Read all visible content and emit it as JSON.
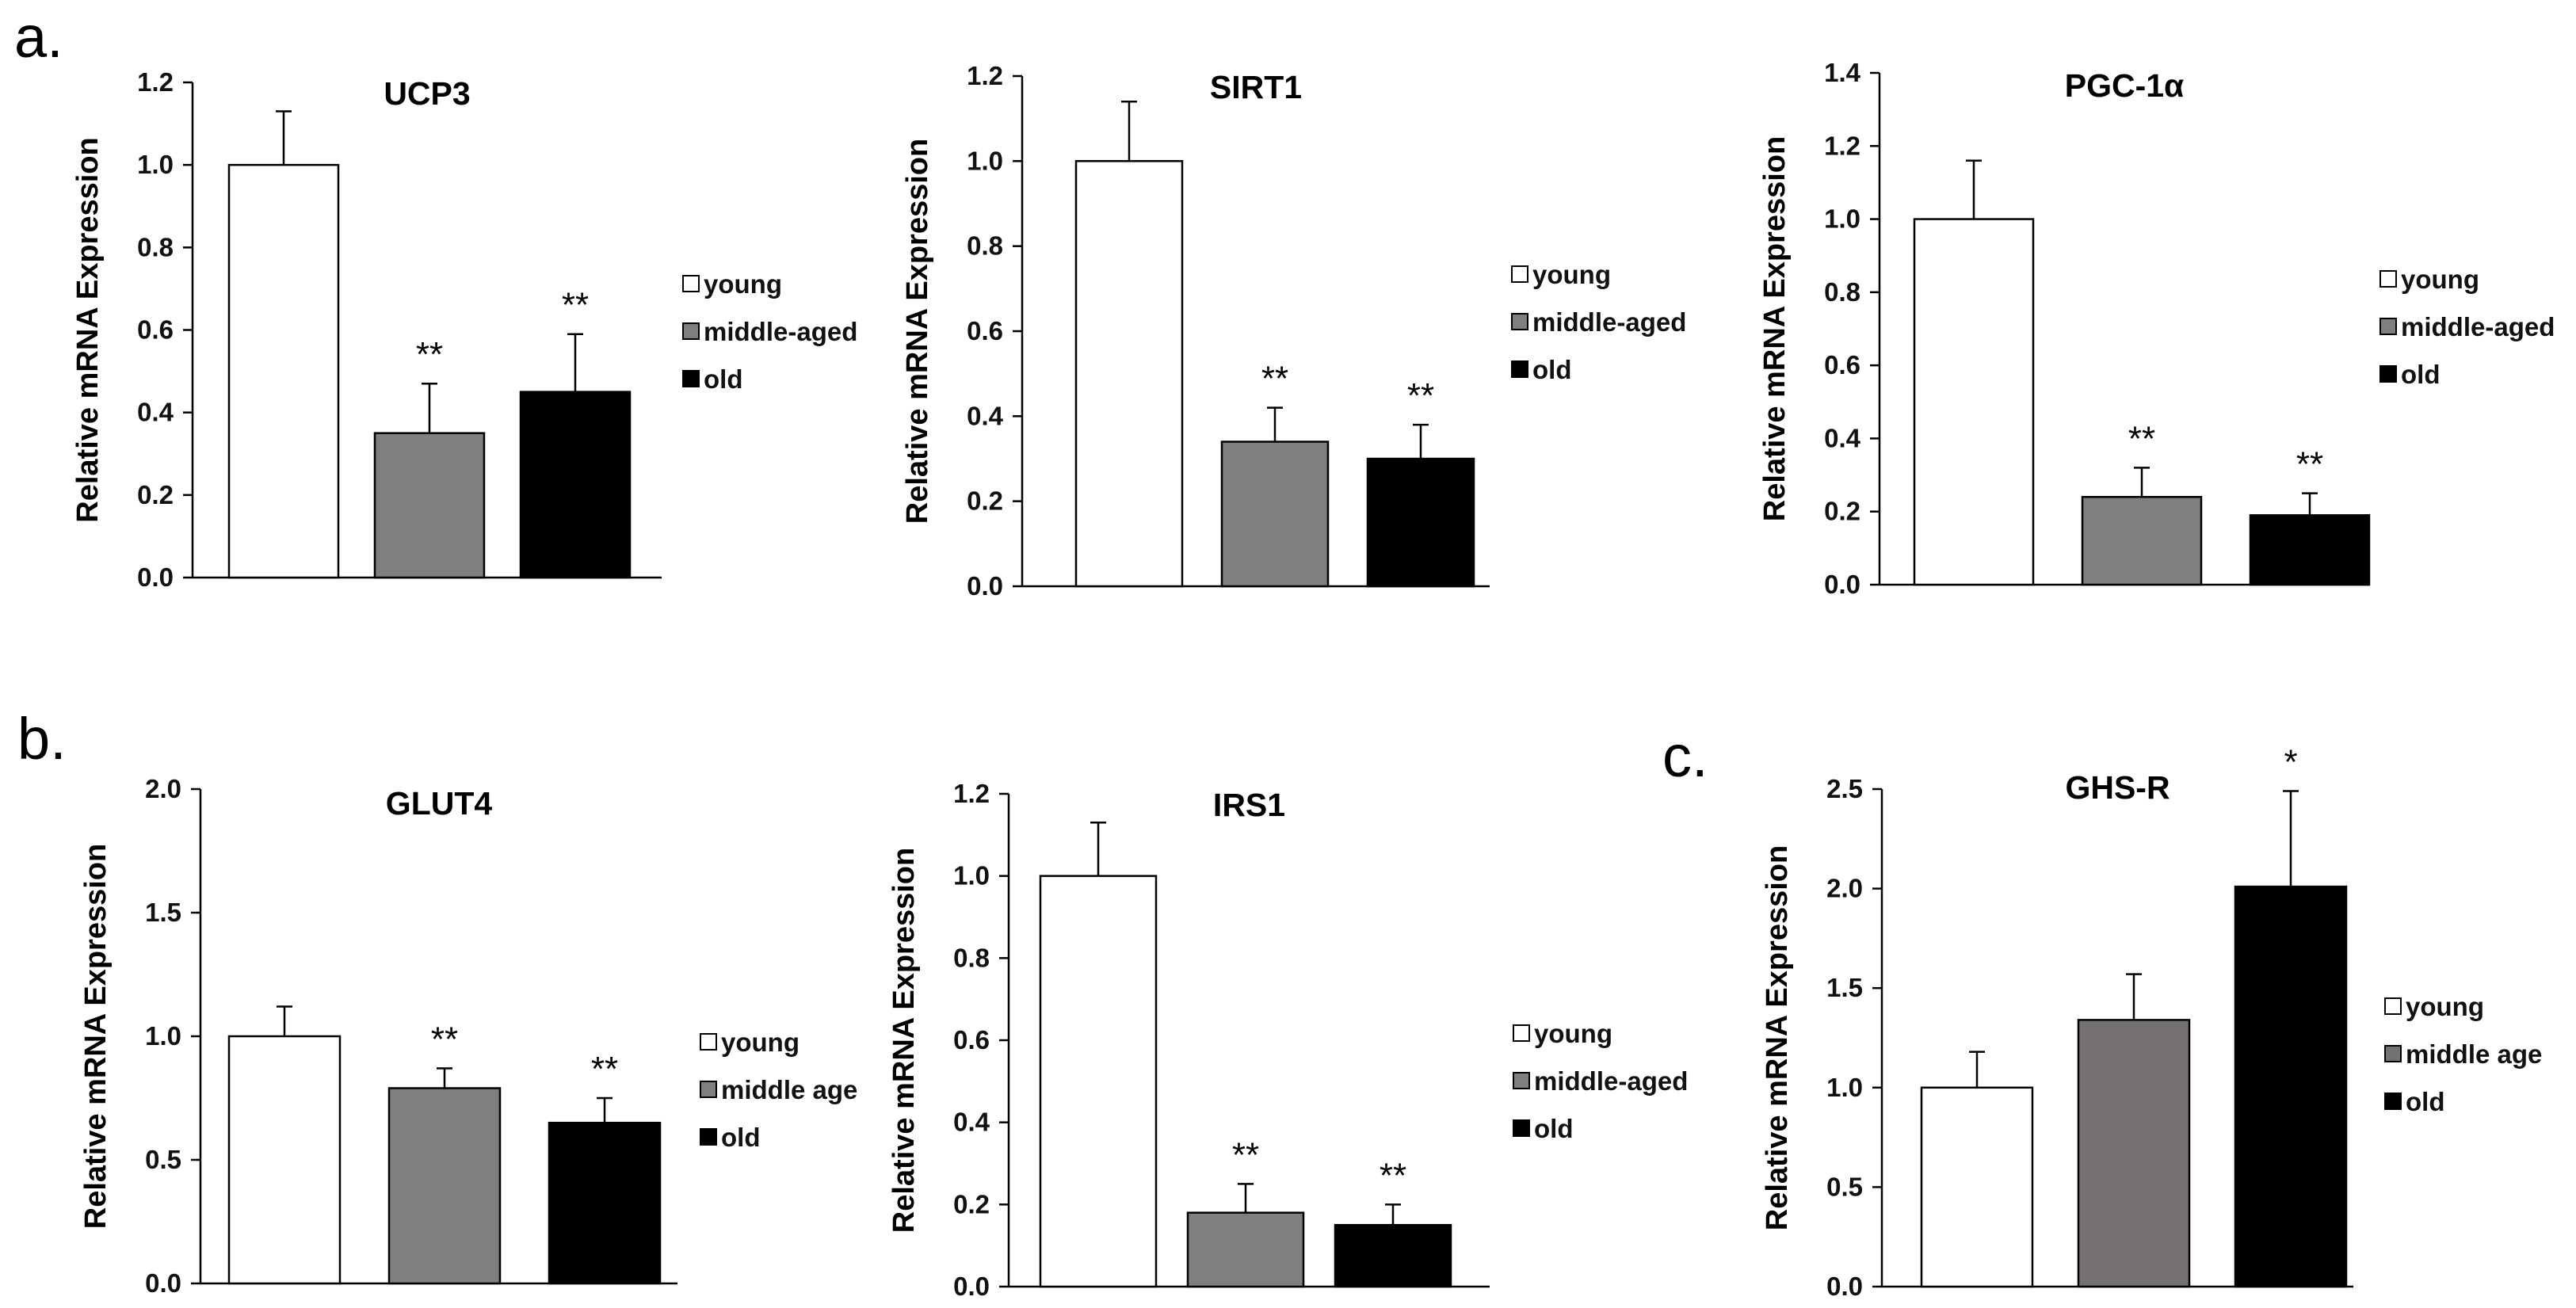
{
  "panel_labels": [
    "a.",
    "b.",
    "c."
  ],
  "colors": {
    "young": "#ffffff",
    "middle": "#7f7f7f",
    "middle_ghsr": "#767171",
    "old": "#000000",
    "axis": "#000000"
  },
  "chart_data": [
    {
      "type": "bar",
      "title": "UCP3",
      "ylabel": "Relative mRNA Expression",
      "xlabel": "",
      "categories": [
        "young",
        "middle-aged",
        "old"
      ],
      "values": [
        1.0,
        0.35,
        0.45
      ],
      "errors": [
        0.13,
        0.12,
        0.14
      ],
      "significance": [
        "",
        "**",
        "**"
      ],
      "ylim": [
        0,
        1.2
      ],
      "yticks": [
        "0.0",
        "0.2",
        "0.4",
        "0.6",
        "0.8",
        "1.0",
        "1.2"
      ],
      "legend": [
        "young",
        "middle-aged",
        "old"
      ]
    },
    {
      "type": "bar",
      "title": "SIRT1",
      "ylabel": "Relative mRNA Expression",
      "xlabel": "",
      "categories": [
        "young",
        "middle-aged",
        "old"
      ],
      "values": [
        1.0,
        0.34,
        0.3
      ],
      "errors": [
        0.14,
        0.08,
        0.08
      ],
      "significance": [
        "",
        "**",
        "**"
      ],
      "ylim": [
        0,
        1.2
      ],
      "yticks": [
        "0.0",
        "0.2",
        "0.4",
        "0.6",
        "0.8",
        "1.0",
        "1.2"
      ],
      "legend": [
        "young",
        "middle-aged",
        "old"
      ]
    },
    {
      "type": "bar",
      "title": "PGC-1α",
      "ylabel": "Relative mRNA Expression",
      "xlabel": "",
      "categories": [
        "young",
        "middle-aged",
        "old"
      ],
      "values": [
        1.0,
        0.24,
        0.19
      ],
      "errors": [
        0.16,
        0.08,
        0.06
      ],
      "significance": [
        "",
        "**",
        "**"
      ],
      "ylim": [
        0,
        1.4
      ],
      "yticks": [
        "0.0",
        "0.2",
        "0.4",
        "0.6",
        "0.8",
        "1.0",
        "1.2",
        "1.4"
      ],
      "legend": [
        "young",
        "middle-aged",
        "old"
      ]
    },
    {
      "type": "bar",
      "title": "GLUT4",
      "ylabel": "Relative mRNA Expression",
      "xlabel": "",
      "categories": [
        "young",
        "middle age",
        "old"
      ],
      "values": [
        1.0,
        0.79,
        0.65
      ],
      "errors": [
        0.12,
        0.08,
        0.1
      ],
      "significance": [
        "",
        "**",
        "**"
      ],
      "ylim": [
        0,
        2.0
      ],
      "yticks": [
        "0.0",
        "0.5",
        "1.0",
        "1.5",
        "2.0"
      ],
      "legend": [
        "young",
        "middle age",
        "old"
      ]
    },
    {
      "type": "bar",
      "title": "IRS1",
      "ylabel": "Relative mRNA Expression",
      "xlabel": "",
      "categories": [
        "young",
        "middle-aged",
        "old"
      ],
      "values": [
        1.0,
        0.18,
        0.15
      ],
      "errors": [
        0.13,
        0.07,
        0.05
      ],
      "significance": [
        "",
        "**",
        "**"
      ],
      "ylim": [
        0,
        1.2
      ],
      "yticks": [
        "0.0",
        "0.2",
        "0.4",
        "0.6",
        "0.8",
        "1.0",
        "1.2"
      ],
      "legend": [
        "young",
        "middle-aged",
        "old"
      ]
    },
    {
      "type": "bar",
      "title": "GHS-R",
      "ylabel": "Relative mRNA Expression",
      "xlabel": "",
      "categories": [
        "young",
        "middle age",
        "old"
      ],
      "values": [
        1.0,
        1.34,
        2.01
      ],
      "errors": [
        0.18,
        0.23,
        0.48
      ],
      "significance": [
        "",
        "",
        "*"
      ],
      "ylim": [
        0,
        2.5
      ],
      "yticks": [
        "0.0",
        "0.5",
        "1.0",
        "1.5",
        "2.0",
        "2.5"
      ],
      "legend": [
        "young",
        "middle age",
        "old"
      ]
    }
  ]
}
